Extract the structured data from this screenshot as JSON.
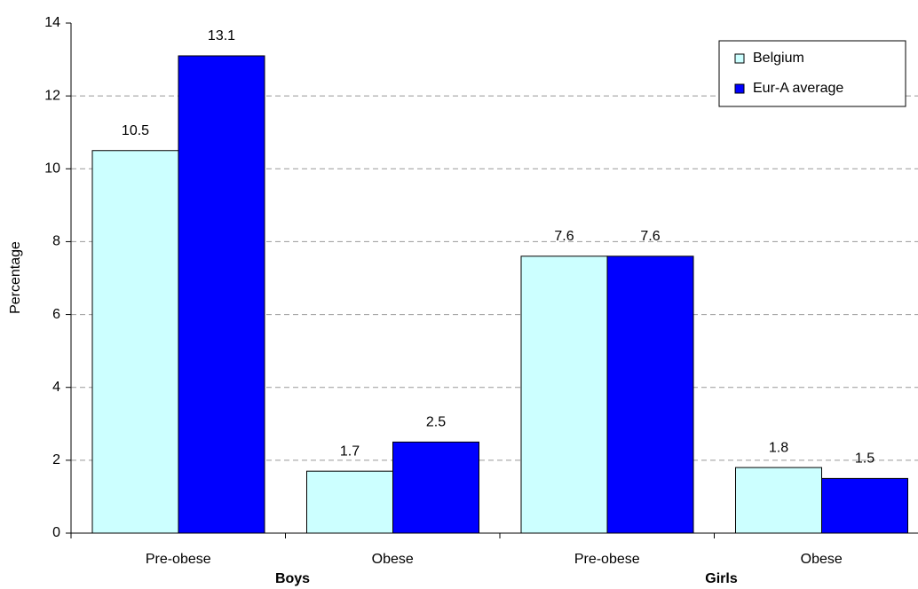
{
  "chart_data": {
    "type": "grouped-bar",
    "y_label": "Percentage",
    "categories": [
      "Pre-obese",
      "Obese",
      "Pre-obese",
      "Obese"
    ],
    "groups": [
      "Boys",
      "Girls"
    ],
    "series": [
      {
        "name": "Belgium",
        "color": "#ccffff",
        "values": [
          10.5,
          1.7,
          7.6,
          1.8
        ]
      },
      {
        "name": "Eur-A average",
        "color": "#0000ff",
        "values": [
          13.1,
          2.5,
          7.6,
          1.5
        ]
      }
    ],
    "ylim": [
      0,
      14
    ],
    "yticks": [
      0,
      2,
      4,
      6,
      8,
      10,
      12,
      14
    ],
    "grid": true,
    "legend": "top-right"
  }
}
